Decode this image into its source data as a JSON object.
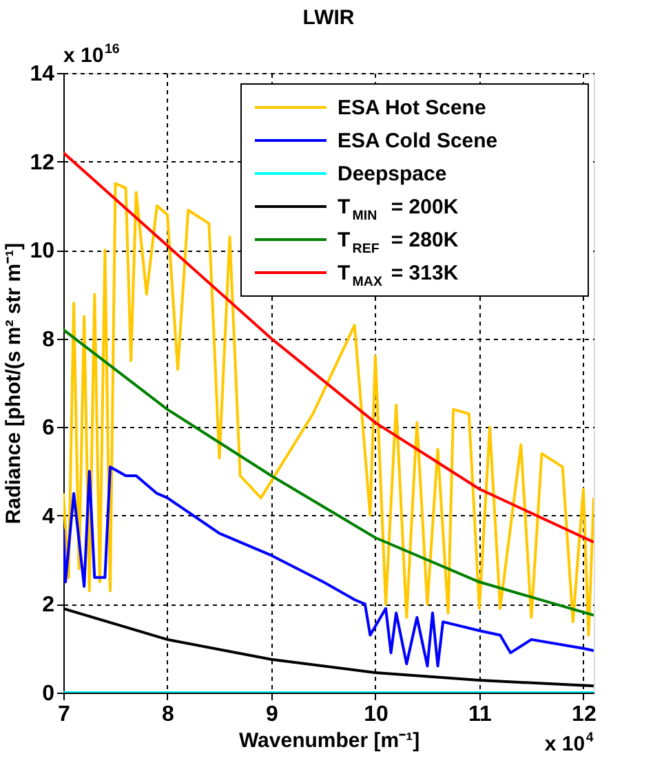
{
  "chart_data": {
    "type": "line",
    "title": "LWIR",
    "xlabel": "Wavenumber [m⁻¹]",
    "ylabel": "Radiance [phot/(s m² str m⁻¹]",
    "annotations": [
      "x 10$^{16}$",
      "x 10$^{4}$"
    ],
    "xlim": [
      7,
      12.1
    ],
    "xticks": [
      7,
      8,
      9,
      10,
      11,
      12
    ],
    "ylim": [
      0,
      14
    ],
    "yticks": [
      0,
      2,
      4,
      6,
      8,
      10,
      12,
      14
    ],
    "grid": true,
    "legend": "top right",
    "line_style": "solid",
    "marker": "none",
    "series": [
      {
        "name": "ESA Hot Scene",
        "color": "#ffc800",
        "x": [
          7.0,
          7.05,
          7.1,
          7.15,
          7.2,
          7.25,
          7.3,
          7.35,
          7.4,
          7.45,
          7.5,
          7.6,
          7.65,
          7.7,
          7.8,
          7.9,
          8.0,
          8.1,
          8.2,
          8.4,
          8.5,
          8.6,
          8.7,
          8.9,
          9.4,
          9.8,
          9.95,
          10.0,
          10.1,
          10.2,
          10.3,
          10.4,
          10.5,
          10.6,
          10.7,
          10.75,
          10.9,
          11.0,
          11.1,
          11.2,
          11.4,
          11.5,
          11.6,
          11.8,
          11.9,
          12.0,
          12.05,
          12.1
        ],
        "values": [
          4.5,
          2.6,
          8.8,
          2.8,
          8.5,
          2.3,
          9.0,
          2.5,
          10.0,
          2.3,
          11.5,
          11.4,
          7.5,
          11.3,
          9.0,
          11.0,
          10.8,
          7.3,
          10.9,
          10.6,
          5.3,
          10.3,
          4.9,
          4.4,
          6.3,
          8.3,
          4.0,
          7.6,
          2.0,
          6.5,
          1.7,
          6.1,
          2.0,
          5.5,
          1.8,
          6.4,
          6.3,
          1.9,
          6.0,
          1.9,
          5.6,
          1.7,
          5.4,
          5.1,
          1.6,
          4.6,
          1.3,
          4.4
        ]
      },
      {
        "name": "ESA Cold Scene",
        "color": "#0000ff",
        "x": [
          7.0,
          7.02,
          7.1,
          7.2,
          7.25,
          7.3,
          7.4,
          7.45,
          7.6,
          7.7,
          7.9,
          8.0,
          8.5,
          9.0,
          9.5,
          9.8,
          9.9,
          9.95,
          10.1,
          10.15,
          10.2,
          10.3,
          10.4,
          10.5,
          10.55,
          10.6,
          10.65,
          11.0,
          11.2,
          11.3,
          11.5,
          12.0,
          12.1
        ],
        "values": [
          3.7,
          2.5,
          4.5,
          2.4,
          5.0,
          2.6,
          2.6,
          5.1,
          4.9,
          4.9,
          4.5,
          4.4,
          3.6,
          3.1,
          2.5,
          2.1,
          2.0,
          1.3,
          1.9,
          0.9,
          1.8,
          0.65,
          1.7,
          0.6,
          1.8,
          0.6,
          1.6,
          1.4,
          1.3,
          0.9,
          1.2,
          1.0,
          0.95
        ]
      },
      {
        "name": "Deepspace",
        "color": "#00ffff",
        "x": [
          7.0,
          12.1
        ],
        "values": [
          0,
          0
        ]
      },
      {
        "name": "T$_{MIN}$ = 200K",
        "color": "#000000",
        "x": [
          7,
          8,
          9,
          10,
          11,
          12.1
        ],
        "values": [
          1.9,
          1.2,
          0.75,
          0.45,
          0.28,
          0.15
        ]
      },
      {
        "name": "T$_{REF}$ = 280K",
        "color": "#008000",
        "x": [
          7,
          8,
          9,
          10,
          11,
          12.1
        ],
        "values": [
          8.2,
          6.4,
          4.9,
          3.5,
          2.5,
          1.75
        ]
      },
      {
        "name": "T$_{MAX}$ = 313K",
        "color": "#ff0000",
        "x": [
          7,
          8,
          9,
          10,
          11,
          12.1
        ],
        "values": [
          12.2,
          10.1,
          8.0,
          6.1,
          4.6,
          3.4
        ]
      }
    ]
  }
}
